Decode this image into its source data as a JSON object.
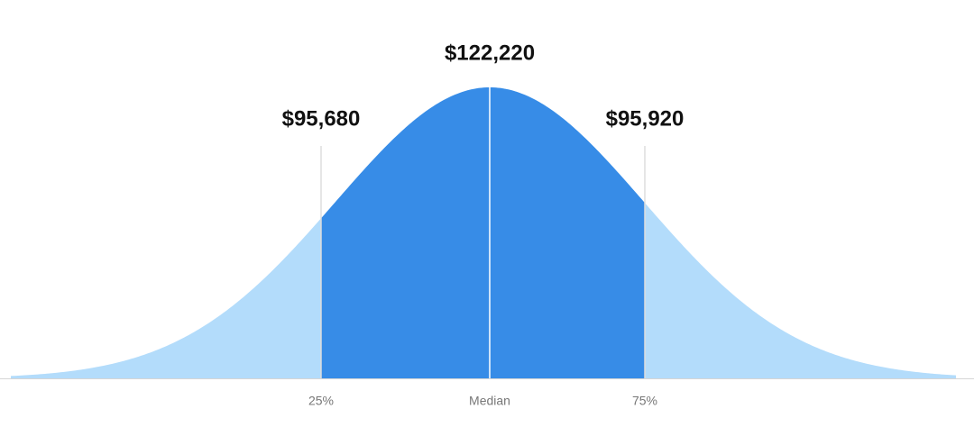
{
  "chart_data": {
    "type": "distribution",
    "categories": [
      "25%",
      "Median",
      "75%"
    ],
    "values": [
      95680,
      122220,
      95920
    ],
    "value_labels": [
      "$95,680",
      "$122,220",
      "$95,920"
    ],
    "colors": {
      "outer": "#b3dcfb",
      "inner": "#378ce7"
    }
  }
}
